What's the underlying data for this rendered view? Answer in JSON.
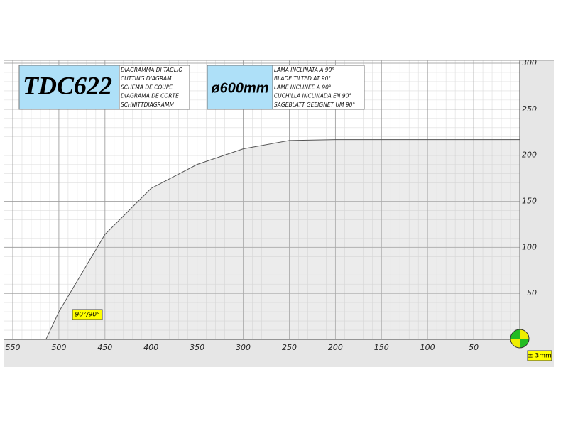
{
  "chart_data": {
    "type": "area",
    "title": "TDC622",
    "subtitle_lines": [
      "DIAGRAMMA DI TAGLIO",
      "CUTTING DIAGRAM",
      "SCHEMA DE COUPE",
      "DIAGRAMA DE CORTE",
      "SCHNITTDIAGRAMM"
    ],
    "blade": "ø600mm",
    "blade_lines": [
      "LAMA INCLINATA A 90°",
      "BLADE TILTED AT 90°",
      "LAME INCLINEE A 90°",
      "CUCHILLA INCLINADA EN 90°",
      "SAGEBLATT GEEIGNET UM 90°"
    ],
    "annotation": "90°/90°",
    "tolerance": "± 3mm",
    "x": [
      514,
      500,
      450,
      400,
      350,
      300,
      250,
      200,
      0
    ],
    "values": [
      0,
      30,
      114,
      164,
      190,
      207,
      216,
      217,
      217
    ],
    "color": "#555555",
    "xlim": [
      550,
      0
    ],
    "ylim": [
      0,
      300
    ],
    "xticks": [
      550,
      500,
      450,
      400,
      350,
      300,
      250,
      200,
      150,
      100,
      50
    ],
    "yticks": [
      50,
      100,
      150,
      200,
      250,
      300
    ],
    "grid": true
  }
}
